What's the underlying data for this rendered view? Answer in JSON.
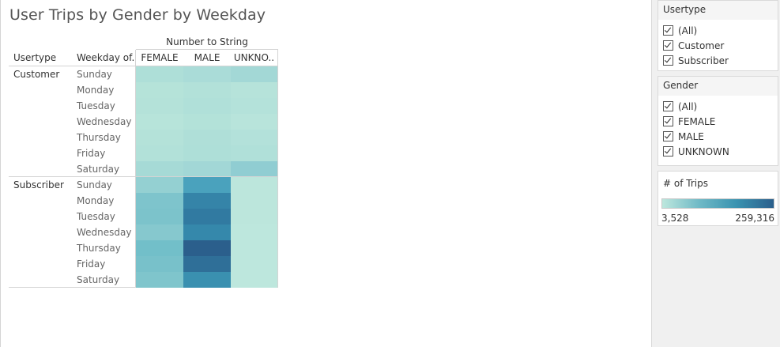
{
  "title": "User Trips by Gender by Weekday",
  "table": {
    "column_group_label": "Number to String",
    "headers": {
      "usertype": "Usertype",
      "weekday": "Weekday of..",
      "female": "FEMALE",
      "male": "MALE",
      "unknown": "UNKNO.."
    },
    "groups": [
      {
        "usertype": "Customer",
        "rows": [
          {
            "weekday": "Sunday",
            "colors": [
              "#aedfd8",
              "#aadcd8",
              "#a3d8d6"
            ]
          },
          {
            "weekday": "Monday",
            "colors": [
              "#b5e3d9",
              "#b2e1d9",
              "#b6e3da"
            ]
          },
          {
            "weekday": "Tuesday",
            "colors": [
              "#b4e2d9",
              "#b0e0d9",
              "#b4e2da"
            ]
          },
          {
            "weekday": "Wednesday",
            "colors": [
              "#b7e4da",
              "#b3e2d9",
              "#b8e4db"
            ]
          },
          {
            "weekday": "Thursday",
            "colors": [
              "#b4e2d9",
              "#afdfd8",
              "#b3e1da"
            ]
          },
          {
            "weekday": "Friday",
            "colors": [
              "#b2e1d9",
              "#aedfd8",
              "#b0e0d9"
            ]
          },
          {
            "weekday": "Saturday",
            "colors": [
              "#a6dad6",
              "#a2d7d6",
              "#90cdd2"
            ]
          }
        ]
      },
      {
        "usertype": "Subscriber",
        "rows": [
          {
            "weekday": "Sunday",
            "colors": [
              "#94d0d2",
              "#4aa2bd",
              "#bce6dc"
            ]
          },
          {
            "weekday": "Monday",
            "colors": [
              "#7ec4cc",
              "#3584a8",
              "#bce6dc"
            ]
          },
          {
            "weekday": "Tuesday",
            "colors": [
              "#7cc3cb",
              "#317aa1",
              "#bce6dc"
            ]
          },
          {
            "weekday": "Wednesday",
            "colors": [
              "#86c8ce",
              "#3588ab",
              "#bde7dd"
            ]
          },
          {
            "weekday": "Thursday",
            "colors": [
              "#72bfc9",
              "#2b5f8c",
              "#bde7dd"
            ]
          },
          {
            "weekday": "Friday",
            "colors": [
              "#78c1ca",
              "#2f6f98",
              "#bde7dd"
            ]
          },
          {
            "weekday": "Saturday",
            "colors": [
              "#7fc5cc",
              "#3a90b0",
              "#bde7dd"
            ]
          }
        ]
      }
    ]
  },
  "filters": {
    "usertype": {
      "title": "Usertype",
      "options": [
        "(All)",
        "Customer",
        "Subscriber"
      ]
    },
    "gender": {
      "title": "Gender",
      "options": [
        "(All)",
        "FEMALE",
        "MALE",
        "UNKNOWN"
      ]
    }
  },
  "legend": {
    "title": "# of Trips",
    "min": "3,528",
    "max": "259,316"
  }
}
